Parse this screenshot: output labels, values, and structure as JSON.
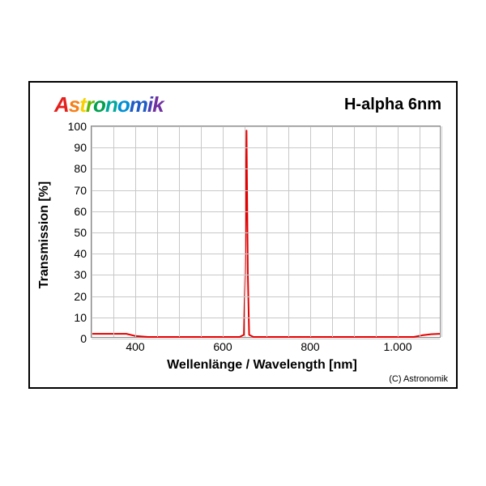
{
  "brand": {
    "text": "Astronomik",
    "letter_colors": [
      "#e4201c",
      "#f57f17",
      "#f9d000",
      "#5fb800",
      "#00a04e",
      "#00a99d",
      "#008fd5",
      "#1e5bc6",
      "#4a3db5",
      "#7030a0"
    ]
  },
  "title": "H-alpha 6nm",
  "copyright": "(C) Astronomik",
  "chart": {
    "type": "line",
    "xlabel": "Wellenlänge / Wavelength [nm]",
    "ylabel": "Transmission [%]",
    "xlim": [
      300,
      1100
    ],
    "ylim": [
      0,
      100
    ],
    "xticks": [
      400,
      600,
      800,
      1000
    ],
    "xtick_labels": [
      "400",
      "600",
      "800",
      "1.000"
    ],
    "yticks": [
      0,
      10,
      20,
      30,
      40,
      50,
      60,
      70,
      80,
      90,
      100
    ],
    "grid_x_minor_step": 50,
    "grid_color": "#c8c8c8",
    "background_color": "#ffffff",
    "line_color": "#e60000",
    "line_width": 2,
    "label_fontsize": 16,
    "tick_fontsize": 14,
    "title_fontsize": 20,
    "series": {
      "x": [
        300,
        380,
        400,
        430,
        500,
        620,
        640,
        650,
        653,
        656,
        659,
        662,
        672,
        700,
        900,
        1040,
        1060,
        1080,
        1100
      ],
      "y": [
        1.5,
        1.5,
        0.5,
        0,
        0,
        0,
        0,
        1,
        30,
        98,
        30,
        1,
        0,
        0,
        0,
        0,
        0.8,
        1.3,
        1.5
      ]
    }
  }
}
